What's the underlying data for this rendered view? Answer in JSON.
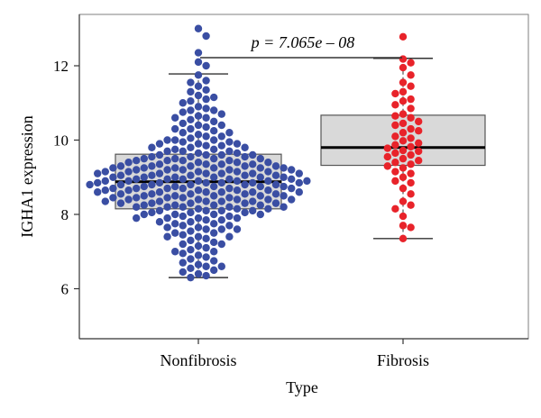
{
  "chart_data": {
    "type": "box",
    "xlabel": "Type",
    "ylabel": "IGHA1 expression",
    "categories": [
      "Nonfibrosis",
      "Fibrosis"
    ],
    "yticks": [
      6,
      8,
      10,
      12
    ],
    "ylim": [
      4.6,
      13.2
    ],
    "annotation": "p = 7.065e – 08",
    "colors": {
      "Nonfibrosis": "#3a4ea3",
      "Fibrosis": "#e8232a",
      "box_fill": "#d9d9d9"
    },
    "boxes": [
      {
        "category": "Nonfibrosis",
        "min": 6.3,
        "q1": 8.15,
        "median": 8.88,
        "q3": 9.62,
        "max": 11.78
      },
      {
        "category": "Fibrosis",
        "min": 7.35,
        "q1": 9.32,
        "median": 9.8,
        "q3": 10.67,
        "max": 12.2
      }
    ],
    "points": {
      "Nonfibrosis": [
        13.0,
        12.8,
        12.35,
        12.1,
        12.0,
        11.75,
        11.55,
        11.45,
        11.35,
        11.2,
        11.15,
        11.1,
        11.05,
        11.0,
        10.9,
        10.85,
        10.8,
        10.75,
        10.7,
        10.65,
        10.6,
        10.55,
        10.5,
        10.45,
        10.4,
        10.35,
        10.3,
        10.3,
        10.25,
        10.2,
        10.15,
        10.1,
        10.1,
        10.05,
        10.0,
        10.0,
        9.95,
        9.95,
        9.9,
        9.9,
        9.85,
        9.85,
        9.8,
        9.8,
        9.75,
        9.75,
        9.7,
        9.7,
        9.65,
        9.65,
        9.6,
        9.6,
        9.6,
        9.55,
        9.55,
        9.5,
        9.5,
        9.5,
        9.45,
        9.45,
        9.45,
        9.4,
        9.4,
        9.4,
        9.35,
        9.35,
        9.35,
        9.3,
        9.3,
        9.3,
        9.3,
        9.25,
        9.25,
        9.25,
        9.25,
        9.25,
        9.2,
        9.2,
        9.2,
        9.2,
        9.15,
        9.15,
        9.15,
        9.15,
        9.1,
        9.1,
        9.1,
        9.1,
        9.1,
        9.05,
        9.05,
        9.05,
        9.05,
        9.0,
        9.0,
        9.0,
        9.0,
        9.0,
        8.95,
        8.95,
        8.95,
        8.95,
        8.9,
        8.9,
        8.9,
        8.9,
        8.9,
        8.85,
        8.85,
        8.85,
        8.85,
        8.85,
        8.8,
        8.8,
        8.8,
        8.8,
        8.8,
        8.75,
        8.75,
        8.75,
        8.75,
        8.7,
        8.7,
        8.7,
        8.7,
        8.7,
        8.65,
        8.65,
        8.65,
        8.65,
        8.6,
        8.6,
        8.6,
        8.6,
        8.6,
        8.55,
        8.55,
        8.55,
        8.55,
        8.5,
        8.5,
        8.5,
        8.5,
        8.45,
        8.45,
        8.45,
        8.45,
        8.4,
        8.4,
        8.4,
        8.4,
        8.35,
        8.35,
        8.35,
        8.35,
        8.3,
        8.3,
        8.3,
        8.3,
        8.25,
        8.25,
        8.25,
        8.2,
        8.2,
        8.2,
        8.2,
        8.15,
        8.15,
        8.15,
        8.1,
        8.1,
        8.1,
        8.05,
        8.05,
        8.05,
        8.0,
        8.0,
        8.0,
        7.95,
        7.95,
        7.9,
        7.9,
        7.9,
        7.85,
        7.85,
        7.8,
        7.8,
        7.75,
        7.75,
        7.7,
        7.7,
        7.65,
        7.65,
        7.6,
        7.6,
        7.55,
        7.5,
        7.5,
        7.45,
        7.4,
        7.4,
        7.35,
        7.3,
        7.25,
        7.2,
        7.15,
        7.1,
        7.05,
        7.0,
        6.95,
        6.9,
        6.85,
        6.8,
        6.75,
        6.7,
        6.65,
        6.6,
        6.55,
        6.5,
        6.45,
        6.4,
        6.35,
        6.3,
        9.6,
        9.4,
        9.2,
        9.0,
        8.8,
        8.6,
        8.4,
        8.2,
        9.3,
        9.1,
        8.9,
        8.7,
        8.5,
        8.3,
        9.5,
        8.0,
        9.7,
        10.0,
        9.8,
        9.9,
        8.1,
        7.9,
        10.2,
        10.4,
        7.6,
        7.4,
        10.6,
        7.2,
        10.8,
        7.0,
        11.3,
        6.6,
        11.6,
        9.25,
        9.05,
        8.85,
        8.65,
        8.45,
        8.25,
        9.15,
        8.95,
        8.75,
        8.55,
        8.35,
        9.35,
        9.45,
        9.55
      ],
      "Fibrosis": [
        12.78,
        12.18,
        12.08,
        11.95,
        11.75,
        11.55,
        11.45,
        11.3,
        11.25,
        11.1,
        11.05,
        10.95,
        10.7,
        10.65,
        10.6,
        10.5,
        10.45,
        10.4,
        10.3,
        10.25,
        10.2,
        10.1,
        10.05,
        9.98,
        9.92,
        9.87,
        9.82,
        9.78,
        9.72,
        9.65,
        9.6,
        9.55,
        9.5,
        9.45,
        9.4,
        9.35,
        9.3,
        9.25,
        9.1,
        9.0,
        8.85,
        8.7,
        8.55,
        8.35,
        8.25,
        8.15,
        7.95,
        7.7,
        7.65,
        7.35,
        10.85,
        9.7,
        9.15,
        8.9
      ]
    }
  }
}
